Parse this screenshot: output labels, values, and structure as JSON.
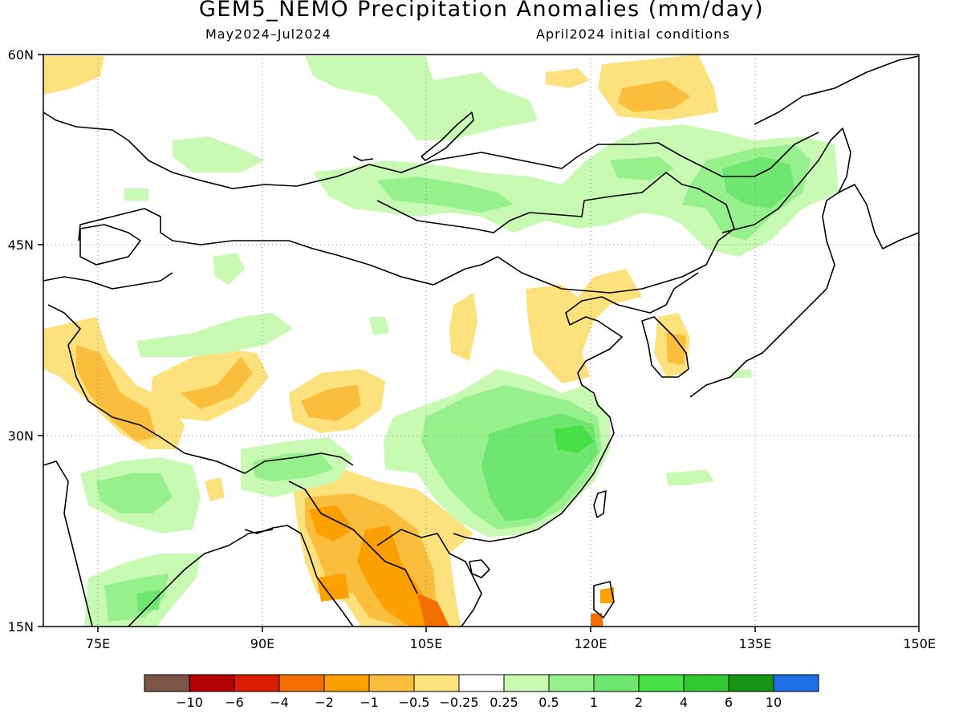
{
  "title": "GEM5_NEMO Precipitation Anomalies (mm/day)",
  "subtitle_left": "May2024–Jul2024",
  "subtitle_right": "April2024 initial conditions",
  "map": {
    "lon_range": [
      70,
      150
    ],
    "lat_range": [
      15,
      60
    ],
    "lon_ticks": [
      {
        "value": 75,
        "label": "75E"
      },
      {
        "value": 90,
        "label": "90E"
      },
      {
        "value": 105,
        "label": "105E"
      },
      {
        "value": 120,
        "label": "120E"
      },
      {
        "value": 135,
        "label": "135E"
      },
      {
        "value": 150,
        "label": "150E"
      }
    ],
    "lat_ticks": [
      {
        "value": 60,
        "label": "60N"
      },
      {
        "value": 45,
        "label": "45N"
      },
      {
        "value": 30,
        "label": "30N"
      },
      {
        "value": 15,
        "label": "15N"
      }
    ],
    "gridlines": "dotted"
  },
  "colorbar": {
    "colors": [
      "#7d5448",
      "#b40000",
      "#dc1e00",
      "#f56e00",
      "#fba000",
      "#fbbe3c",
      "#fde17d",
      "#ffffff",
      "#c8fab4",
      "#96f08c",
      "#6ee670",
      "#46e046",
      "#32c832",
      "#149614",
      "#1e6ee6"
    ],
    "labels": [
      "−10",
      "−6",
      "−4",
      "−2",
      "−1",
      "−0.5",
      "−0.25",
      "0.25",
      "0.5",
      "1",
      "2",
      "4",
      "6",
      "10"
    ]
  }
}
